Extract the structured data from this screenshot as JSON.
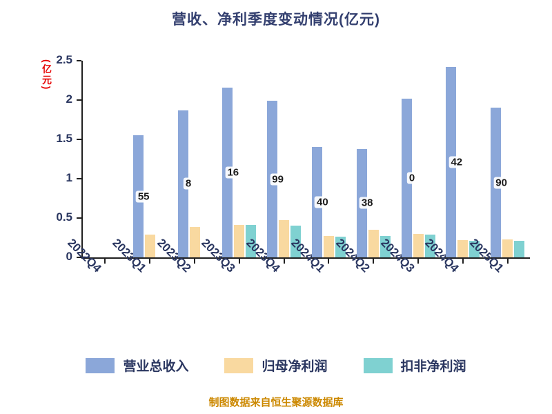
{
  "title": "营收、净利季度变动情况(亿元)",
  "y_axis_unit": "(亿元)",
  "footer": "制图数据来自恒生聚源数据库",
  "chart_data": {
    "type": "bar",
    "title": "营收、净利季度变动情况(亿元)",
    "ylabel": "(亿元)",
    "xlabel": "",
    "ylim": [
      0,
      2.5
    ],
    "ytick_labels": [
      "0",
      "0.5",
      "1",
      "1.5",
      "2",
      "2.5"
    ],
    "yticks": [
      0,
      0.5,
      1,
      1.5,
      2,
      2.5
    ],
    "grid": false,
    "legend_position": "bottom",
    "categories": [
      "2022Q4",
      "2023Q1",
      "2023Q2",
      "2023Q3",
      "2023Q4",
      "2024Q1",
      "2024Q2",
      "2024Q3",
      "2024Q4",
      "2025Q1"
    ],
    "series": [
      {
        "name": "营业总收入",
        "color": "#8BA7D9",
        "values": [
          null,
          1.55,
          1.87,
          2.16,
          1.99,
          1.4,
          1.38,
          2.02,
          2.42,
          1.9
        ]
      },
      {
        "name": "归母净利润",
        "color": "#F9D9A0",
        "values": [
          null,
          0.29,
          0.39,
          0.41,
          0.47,
          0.27,
          0.35,
          0.3,
          0.22,
          0.23
        ]
      },
      {
        "name": "扣非净利润",
        "color": "#7FD1D1",
        "values": [
          null,
          null,
          null,
          0.41,
          0.4,
          0.26,
          0.27,
          0.29,
          0.21,
          0.21
        ]
      }
    ],
    "bar_labels": [
      "",
      "55",
      "8",
      "16",
      "99",
      "40",
      "38",
      "0",
      "42",
      "90"
    ]
  }
}
